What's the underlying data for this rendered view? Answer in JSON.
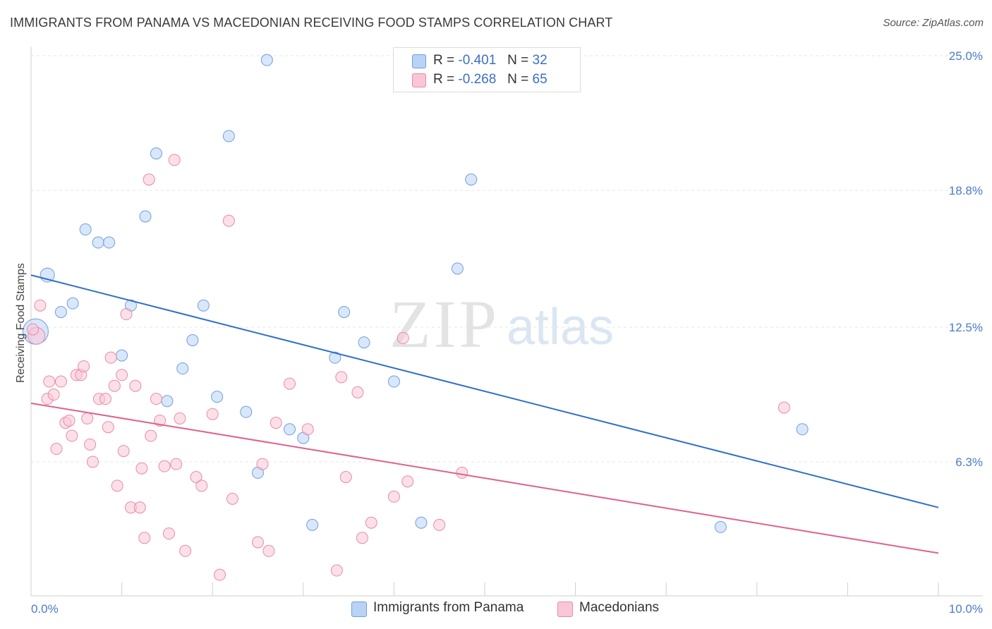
{
  "header": {
    "title": "IMMIGRANTS FROM PANAMA VS MACEDONIAN RECEIVING FOOD STAMPS CORRELATION CHART",
    "source": "Source: ZipAtlas.com"
  },
  "watermark": {
    "zip": "ZIP",
    "atlas": "atlas"
  },
  "legend": {
    "r_label": "R =",
    "n_label": "N =",
    "rows": [
      {
        "r": "-0.401",
        "n": "32",
        "color": "#b9d3f5",
        "border": "#6f9fe0"
      },
      {
        "r": "-0.268",
        "n": "65",
        "color": "#f9c6d5",
        "border": "#ea8aa8"
      }
    ]
  },
  "bottom_legend": [
    {
      "label": "Immigrants from Panama",
      "color": "#b9d3f5",
      "border": "#6f9fe0"
    },
    {
      "label": "Macedonians",
      "color": "#f9c6d5",
      "border": "#ea8aa8"
    }
  ],
  "chart_data": {
    "type": "scatter",
    "xlabel": "",
    "ylabel": "Receiving Food Stamps",
    "xlim": [
      0,
      10
    ],
    "ylim": [
      0,
      26
    ],
    "x_tick_labels": [
      {
        "value": 0,
        "label": "0.0%"
      },
      {
        "value": 10,
        "label": "10.0%"
      }
    ],
    "y_tick_labels": [
      {
        "value": 6.3,
        "label": "6.3%"
      },
      {
        "value": 12.5,
        "label": "12.5%"
      },
      {
        "value": 18.8,
        "label": "18.8%"
      },
      {
        "value": 25.0,
        "label": "25.0%"
      }
    ],
    "series": [
      {
        "name": "Immigrants from Panama",
        "color": "#b9d3f5",
        "stroke": "#6f9fe0",
        "line_color": "#2f6fcb",
        "trend": {
          "x": [
            0,
            10
          ],
          "y": [
            14.9,
            4.2
          ]
        },
        "points": [
          {
            "x": 0.05,
            "y": 12.3,
            "r": 18
          },
          {
            "x": 0.18,
            "y": 14.9,
            "r": 10
          },
          {
            "x": 0.33,
            "y": 13.2
          },
          {
            "x": 0.46,
            "y": 13.6
          },
          {
            "x": 0.6,
            "y": 17.0
          },
          {
            "x": 0.74,
            "y": 16.4
          },
          {
            "x": 0.86,
            "y": 16.4
          },
          {
            "x": 1.0,
            "y": 11.2
          },
          {
            "x": 1.1,
            "y": 13.5
          },
          {
            "x": 1.26,
            "y": 17.6
          },
          {
            "x": 1.38,
            "y": 20.5
          },
          {
            "x": 1.5,
            "y": 9.1
          },
          {
            "x": 1.67,
            "y": 10.6
          },
          {
            "x": 1.78,
            "y": 11.9
          },
          {
            "x": 1.9,
            "y": 13.5
          },
          {
            "x": 2.05,
            "y": 9.3
          },
          {
            "x": 2.18,
            "y": 21.3
          },
          {
            "x": 2.37,
            "y": 8.6
          },
          {
            "x": 2.5,
            "y": 5.8
          },
          {
            "x": 2.6,
            "y": 24.8
          },
          {
            "x": 2.85,
            "y": 7.8
          },
          {
            "x": 3.0,
            "y": 7.4
          },
          {
            "x": 3.1,
            "y": 3.4
          },
          {
            "x": 3.35,
            "y": 11.1
          },
          {
            "x": 3.45,
            "y": 13.2
          },
          {
            "x": 3.67,
            "y": 11.8
          },
          {
            "x": 4.0,
            "y": 10.0
          },
          {
            "x": 4.3,
            "y": 3.5
          },
          {
            "x": 4.7,
            "y": 15.2
          },
          {
            "x": 4.85,
            "y": 19.3
          },
          {
            "x": 7.6,
            "y": 3.3
          },
          {
            "x": 8.5,
            "y": 7.8
          }
        ]
      },
      {
        "name": "Macedonians",
        "color": "#f9c6d5",
        "stroke": "#ea8aa8",
        "line_color": "#e0608e",
        "trend": {
          "x": [
            0,
            10
          ],
          "y": [
            9.0,
            2.1
          ]
        },
        "points": [
          {
            "x": 0.06,
            "y": 12.1,
            "r": 12
          },
          {
            "x": 0.1,
            "y": 13.5
          },
          {
            "x": 0.18,
            "y": 9.2
          },
          {
            "x": 0.2,
            "y": 10.0
          },
          {
            "x": 0.25,
            "y": 9.4
          },
          {
            "x": 0.28,
            "y": 6.9
          },
          {
            "x": 0.33,
            "y": 10.0
          },
          {
            "x": 0.38,
            "y": 8.1
          },
          {
            "x": 0.42,
            "y": 8.2
          },
          {
            "x": 0.45,
            "y": 7.5
          },
          {
            "x": 0.5,
            "y": 10.3
          },
          {
            "x": 0.55,
            "y": 10.3
          },
          {
            "x": 0.58,
            "y": 10.7
          },
          {
            "x": 0.62,
            "y": 8.3
          },
          {
            "x": 0.65,
            "y": 7.1
          },
          {
            "x": 0.68,
            "y": 6.3
          },
          {
            "x": 0.75,
            "y": 9.2
          },
          {
            "x": 0.82,
            "y": 9.2
          },
          {
            "x": 0.85,
            "y": 7.9
          },
          {
            "x": 0.88,
            "y": 11.1
          },
          {
            "x": 0.92,
            "y": 9.8
          },
          {
            "x": 0.95,
            "y": 5.2
          },
          {
            "x": 1.0,
            "y": 10.3
          },
          {
            "x": 1.02,
            "y": 6.8
          },
          {
            "x": 1.05,
            "y": 13.1
          },
          {
            "x": 1.1,
            "y": 4.2
          },
          {
            "x": 1.15,
            "y": 9.8
          },
          {
            "x": 1.2,
            "y": 4.2
          },
          {
            "x": 1.22,
            "y": 6.0
          },
          {
            "x": 1.25,
            "y": 2.8
          },
          {
            "x": 1.3,
            "y": 19.3
          },
          {
            "x": 1.32,
            "y": 7.5
          },
          {
            "x": 1.38,
            "y": 9.2
          },
          {
            "x": 1.42,
            "y": 8.2
          },
          {
            "x": 1.47,
            "y": 6.1
          },
          {
            "x": 1.52,
            "y": 3.0
          },
          {
            "x": 1.58,
            "y": 20.2
          },
          {
            "x": 1.6,
            "y": 6.2
          },
          {
            "x": 1.64,
            "y": 8.3
          },
          {
            "x": 1.7,
            "y": 2.2
          },
          {
            "x": 1.82,
            "y": 5.6
          },
          {
            "x": 1.88,
            "y": 5.2
          },
          {
            "x": 2.0,
            "y": 8.5
          },
          {
            "x": 2.08,
            "y": 1.1
          },
          {
            "x": 2.18,
            "y": 17.4
          },
          {
            "x": 2.22,
            "y": 4.6
          },
          {
            "x": 2.5,
            "y": 2.6
          },
          {
            "x": 2.55,
            "y": 6.2
          },
          {
            "x": 2.62,
            "y": 2.2
          },
          {
            "x": 2.7,
            "y": 8.1
          },
          {
            "x": 2.85,
            "y": 9.9
          },
          {
            "x": 3.05,
            "y": 7.8
          },
          {
            "x": 3.37,
            "y": 1.3
          },
          {
            "x": 3.42,
            "y": 10.2
          },
          {
            "x": 3.47,
            "y": 5.6
          },
          {
            "x": 3.6,
            "y": 9.5
          },
          {
            "x": 3.65,
            "y": 2.8
          },
          {
            "x": 3.75,
            "y": 3.5
          },
          {
            "x": 4.0,
            "y": 4.7
          },
          {
            "x": 4.1,
            "y": 12.0
          },
          {
            "x": 4.15,
            "y": 5.4
          },
          {
            "x": 4.5,
            "y": 3.4
          },
          {
            "x": 4.75,
            "y": 5.8
          },
          {
            "x": 8.3,
            "y": 8.8
          },
          {
            "x": 0.02,
            "y": 12.4
          }
        ]
      }
    ]
  }
}
